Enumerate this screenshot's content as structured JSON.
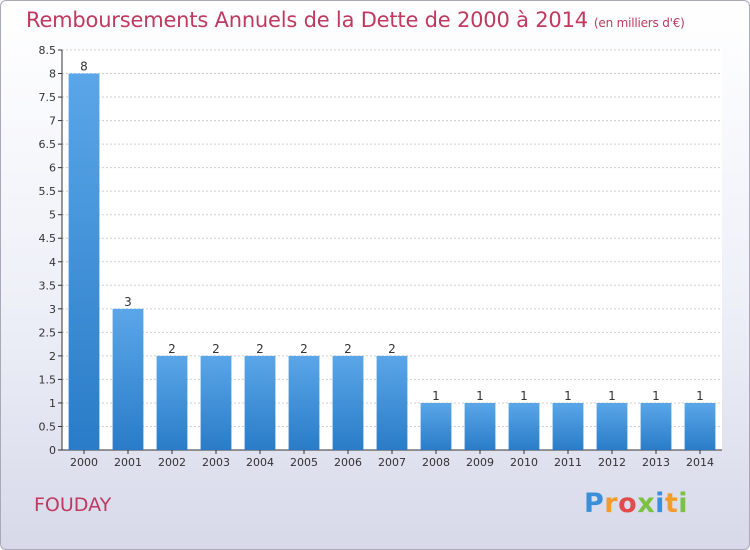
{
  "title": "Remboursements Annuels de la Dette de 2000 à 2014",
  "unit": "(en milliers d'€)",
  "commune": "FOUDAY",
  "logo": {
    "letters": [
      "P",
      "r",
      "o",
      "x",
      "i",
      "t",
      "i"
    ],
    "colors": [
      "#3b8fd9",
      "#f39c2a",
      "#e34a4a",
      "#7cc142",
      "#3b8fd9",
      "#f39c2a",
      "#7cc142"
    ]
  },
  "chart_data": {
    "type": "bar",
    "categories": [
      "2000",
      "2001",
      "2002",
      "2003",
      "2004",
      "2005",
      "2006",
      "2007",
      "2008",
      "2009",
      "2010",
      "2011",
      "2012",
      "2013",
      "2014"
    ],
    "values": [
      8,
      3,
      2,
      2,
      2,
      2,
      2,
      2,
      1,
      1,
      1,
      1,
      1,
      1,
      1
    ],
    "data_labels": [
      "8",
      "3",
      "2",
      "2",
      "2",
      "2",
      "2",
      "2",
      "1",
      "1",
      "1",
      "1",
      "1",
      "1",
      "1"
    ],
    "ylim": [
      0,
      8.5
    ],
    "yticks": [
      "0",
      "0.5",
      "1",
      "1.5",
      "2",
      "2.5",
      "3",
      "3.5",
      "4",
      "4.5",
      "5",
      "5.5",
      "6",
      "6.5",
      "7",
      "7.5",
      "8",
      "8.5"
    ],
    "grid": true,
    "bar_color": "#3b8fd9"
  }
}
